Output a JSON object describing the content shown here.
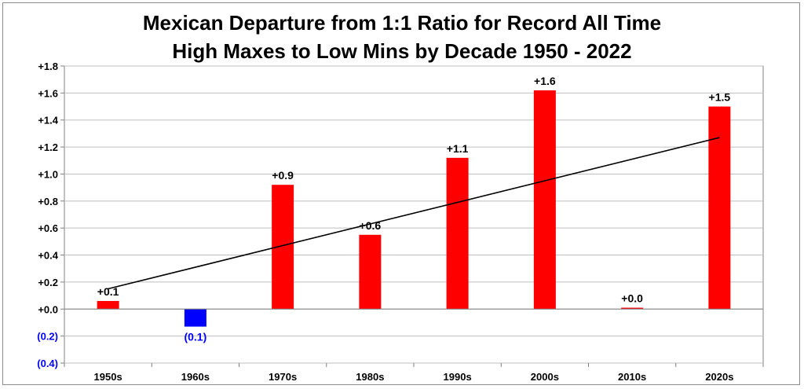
{
  "chart_data": {
    "type": "bar",
    "title": "Mexican Departure from 1:1 Ratio for Record All Time",
    "subtitle": "High Maxes to Low Mins by Decade 1950 - 2022",
    "xlabel": "",
    "ylabel": "",
    "categories": [
      "1950s",
      "1960s",
      "1970s",
      "1980s",
      "1990s",
      "2000s",
      "2010s",
      "2020s"
    ],
    "values": [
      0.06,
      -0.13,
      0.92,
      0.55,
      1.12,
      1.62,
      0.01,
      1.5
    ],
    "data_labels": [
      "+0.1",
      "(0.1)",
      "+0.9",
      "+0.6",
      "+1.1",
      "+1.6",
      "+0.0",
      "+1.5"
    ],
    "ylim": [
      -0.4,
      1.8
    ],
    "ytick_values": [
      -0.4,
      -0.2,
      0.0,
      0.2,
      0.4,
      0.6,
      0.8,
      1.0,
      1.2,
      1.4,
      1.6,
      1.8
    ],
    "ytick_labels": [
      "(0.4)",
      "(0.2)",
      "+0.0",
      "+0.2",
      "+0.4",
      "+0.6",
      "+0.8",
      "+1.0",
      "+1.2",
      "+1.4",
      "+1.6",
      "+1.8"
    ],
    "grid": true,
    "trendline": {
      "type": "linear",
      "start": [
        0,
        0.15
      ],
      "end": [
        7,
        1.27
      ]
    },
    "colors": {
      "positive": "#ff0000",
      "negative": "#0000ff",
      "trendline": "#000000",
      "grid": "#bfbfbf",
      "axis": "#808080"
    }
  }
}
